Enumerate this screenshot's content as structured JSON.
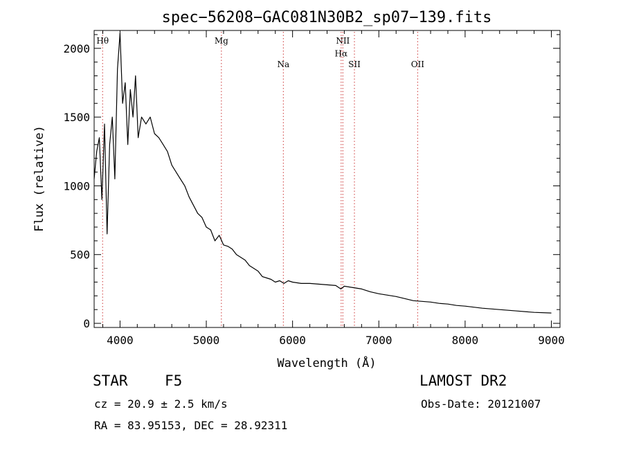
{
  "chart_data": {
    "type": "line",
    "title": "spec−56208−GAC081N30B2_sp07−139.fits",
    "xlabel": "Wavelength (Å)",
    "ylabel": "Flux (relative)",
    "xlim": [
      3700,
      9100
    ],
    "ylim": [
      -30,
      2130
    ],
    "xticks": [
      4000,
      5000,
      6000,
      7000,
      8000,
      9000
    ],
    "yticks": [
      0,
      500,
      1000,
      1500,
      2000
    ],
    "line_color": "#000000",
    "marker_color": "#cc3333",
    "lines": [
      {
        "name": "Hθ",
        "x": 3798,
        "row": 0
      },
      {
        "name": "Mg",
        "x": 5175,
        "row": 0
      },
      {
        "name": "Na",
        "x": 5893,
        "row": 1
      },
      {
        "name": "NII",
        "x": 6583,
        "row": 0
      },
      {
        "name": "Hα",
        "x": 6563,
        "row": 0.55
      },
      {
        "name": "SII",
        "x": 6717,
        "row": 1
      },
      {
        "name": "OII",
        "x": 7450,
        "row": 1
      }
    ],
    "series": [
      {
        "x": [
          3700,
          3730,
          3760,
          3790,
          3820,
          3850,
          3880,
          3910,
          3940,
          3970,
          4000,
          4030,
          4060,
          4090,
          4120,
          4150,
          4180,
          4210,
          4250,
          4300,
          4350,
          4400,
          4450,
          4500,
          4550,
          4600,
          4650,
          4700,
          4750,
          4800,
          4850,
          4900,
          4950,
          5000,
          5050,
          5100,
          5150,
          5200,
          5250,
          5300,
          5350,
          5400,
          5450,
          5500,
          5550,
          5600,
          5650,
          5700,
          5750,
          5800,
          5850,
          5900,
          5950,
          6000,
          6100,
          6200,
          6300,
          6400,
          6500,
          6560,
          6600,
          6700,
          6800,
          6900,
          7000,
          7100,
          7200,
          7300,
          7400,
          7500,
          7600,
          7700,
          7800,
          7900,
          8000,
          8200,
          8400,
          8600,
          8800,
          9000
        ],
        "y": [
          1050,
          1250,
          1350,
          900,
          1450,
          650,
          1300,
          1500,
          1050,
          1850,
          2110,
          1600,
          1750,
          1300,
          1700,
          1500,
          1800,
          1350,
          1500,
          1450,
          1500,
          1380,
          1350,
          1300,
          1250,
          1150,
          1100,
          1050,
          1000,
          920,
          860,
          800,
          770,
          700,
          680,
          600,
          640,
          570,
          560,
          540,
          500,
          480,
          460,
          420,
          400,
          380,
          340,
          330,
          320,
          300,
          310,
          290,
          310,
          300,
          290,
          290,
          285,
          280,
          275,
          250,
          270,
          260,
          250,
          230,
          215,
          205,
          195,
          180,
          165,
          160,
          155,
          145,
          140,
          130,
          125,
          110,
          100,
          90,
          80,
          75
        ]
      }
    ]
  },
  "footer": {
    "object_type": "STAR",
    "subclass": "F5",
    "survey": "LAMOST DR2",
    "cz": "cz = 20.9 ± 2.5 km/s",
    "obs_date": "Obs-Date: 20121007",
    "radec": "RA =  83.95153, DEC =  28.92311"
  }
}
